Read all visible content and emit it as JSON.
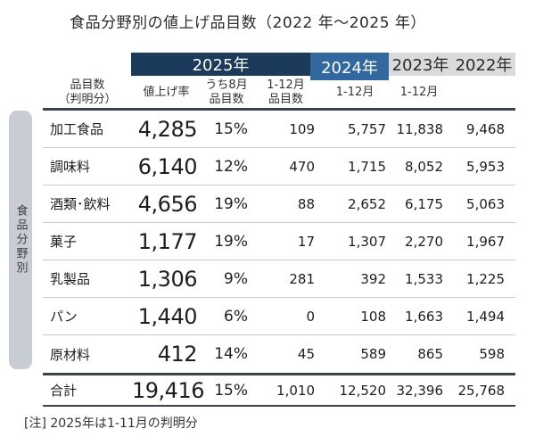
{
  "title": "食品分野別の値上げ品目数（2022 年～2025 年）",
  "side_label": "食品分野別",
  "note": "[注] 2025年は1-11月の判明分",
  "colors": {
    "year2025_bg": "#1b3a5c",
    "year2024_bg": "#32689e",
    "past_years_bg": "#d8dadc",
    "side_bar_bg": "#c8cdd3",
    "rule_dark": "#3a434c",
    "rule_light": "#cacaca"
  },
  "header": {
    "years": [
      {
        "label": "2025年"
      },
      {
        "label": "2024年"
      },
      {
        "label": "2023年"
      },
      {
        "label": "2022年"
      }
    ],
    "subcolumns": [
      "品目数\n（判明分）",
      "値上げ率",
      "うち8月\n品目数",
      "1-12月\n品目数",
      "1-12月",
      "1-12月"
    ]
  },
  "chart_data": {
    "type": "table",
    "title": "食品分野別の値上げ品目数（2022 年～2025 年）",
    "row_axis_label": "食品分野別",
    "columns": [
      "品目数（判明分）2025年",
      "値上げ率 2025年",
      "うち8月品目数 2025年",
      "1-12月品目数 2024年",
      "1-12月 2023年",
      "1-12月 2022年"
    ],
    "rows": [
      {
        "label": "加工食品",
        "items": "4,285",
        "rate": "15%",
        "aug": "109",
        "y2024": "5,757",
        "y2023": "11,838",
        "y2022": "9,468"
      },
      {
        "label": "調味料",
        "items": "6,140",
        "rate": "12%",
        "aug": "470",
        "y2024": "1,715",
        "y2023": "8,052",
        "y2022": "5,953"
      },
      {
        "label": "酒類･飲料",
        "items": "4,656",
        "rate": "19%",
        "aug": "88",
        "y2024": "2,652",
        "y2023": "6,175",
        "y2022": "5,063"
      },
      {
        "label": "菓子",
        "items": "1,177",
        "rate": "19%",
        "aug": "17",
        "y2024": "1,307",
        "y2023": "2,270",
        "y2022": "1,967"
      },
      {
        "label": "乳製品",
        "items": "1,306",
        "rate": "9%",
        "aug": "281",
        "y2024": "392",
        "y2023": "1,533",
        "y2022": "1,225"
      },
      {
        "label": "パン",
        "items": "1,440",
        "rate": "6%",
        "aug": "0",
        "y2024": "108",
        "y2023": "1,663",
        "y2022": "1,494"
      },
      {
        "label": "原材料",
        "items": "412",
        "rate": "14%",
        "aug": "45",
        "y2024": "589",
        "y2023": "865",
        "y2022": "598"
      },
      {
        "label": "合計",
        "items": "19,416",
        "rate": "15%",
        "aug": "1,010",
        "y2024": "12,520",
        "y2023": "32,396",
        "y2022": "25,768"
      }
    ]
  }
}
